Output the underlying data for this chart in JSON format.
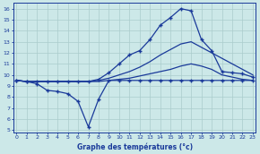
{
  "xlabel": "Graphe des températures (°c)",
  "background_color": "#cce8e8",
  "grid_color": "#aacccc",
  "line_color": "#1a3a9a",
  "x_hours": [
    0,
    1,
    2,
    3,
    4,
    5,
    6,
    7,
    8,
    9,
    10,
    11,
    12,
    13,
    14,
    15,
    16,
    17,
    18,
    19,
    20,
    21,
    22,
    23
  ],
  "series1": [
    9.5,
    9.4,
    9.4,
    9.4,
    9.4,
    9.4,
    9.4,
    9.4,
    9.6,
    10.2,
    11.0,
    11.8,
    12.2,
    13.2,
    14.5,
    15.2,
    16.0,
    15.8,
    13.2,
    12.2,
    10.3,
    10.2,
    10.1,
    9.8
  ],
  "series2": [
    9.5,
    9.4,
    9.4,
    9.4,
    9.4,
    9.4,
    9.4,
    9.4,
    9.5,
    9.7,
    10.0,
    10.3,
    10.7,
    11.2,
    11.8,
    12.3,
    12.8,
    13.0,
    12.5,
    12.0,
    11.5,
    11.0,
    10.5,
    10.0
  ],
  "series3": [
    9.5,
    9.4,
    9.4,
    9.4,
    9.4,
    9.4,
    9.4,
    9.4,
    9.4,
    9.5,
    9.6,
    9.7,
    9.9,
    10.1,
    10.3,
    10.5,
    10.8,
    11.0,
    10.8,
    10.5,
    10.0,
    9.8,
    9.6,
    9.5
  ],
  "series4": [
    9.5,
    9.4,
    9.2,
    8.6,
    8.5,
    8.3,
    7.6,
    5.3,
    7.8,
    9.5,
    9.5,
    9.5,
    9.5,
    9.5,
    9.5,
    9.5,
    9.5,
    9.5,
    9.5,
    9.5,
    9.5,
    9.5,
    9.5,
    9.5
  ],
  "ylim": [
    4.8,
    16.5
  ],
  "yticks": [
    5,
    6,
    7,
    8,
    9,
    10,
    11,
    12,
    13,
    14,
    15,
    16
  ],
  "xticks": [
    0,
    1,
    2,
    3,
    4,
    5,
    6,
    7,
    8,
    9,
    10,
    11,
    12,
    13,
    14,
    15,
    16,
    17,
    18,
    19,
    20,
    21,
    22,
    23
  ],
  "xlim": [
    -0.3,
    23.3
  ]
}
